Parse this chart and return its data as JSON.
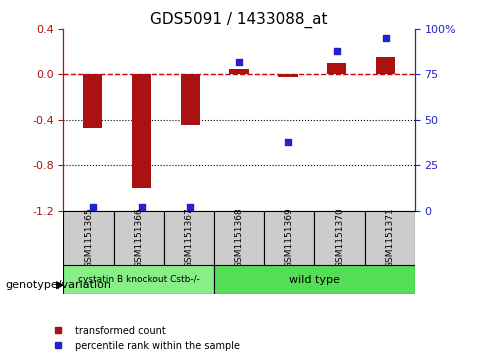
{
  "title": "GDS5091 / 1433088_at",
  "samples": [
    "GSM1151365",
    "GSM1151366",
    "GSM1151367",
    "GSM1151368",
    "GSM1151369",
    "GSM1151370",
    "GSM1151371"
  ],
  "transformed_count": [
    -0.47,
    -1.0,
    -0.45,
    0.05,
    -0.02,
    0.1,
    0.15
  ],
  "percentile_rank": [
    2,
    2,
    2,
    82,
    38,
    88,
    95
  ],
  "ylim_left": [
    -1.2,
    0.4
  ],
  "ylim_right": [
    0,
    100
  ],
  "bar_color": "#AA1111",
  "dot_color": "#2222CC",
  "zero_line_color": "#CC0000",
  "grid_color": "#000000",
  "group1_label": "cystatin B knockout Cstb-/-",
  "group2_label": "wild type",
  "group1_count": 3,
  "group2_count": 4,
  "group1_color": "#88EE88",
  "group2_color": "#55DD55",
  "genotype_label": "genotype/variation",
  "legend_red": "transformed count",
  "legend_blue": "percentile rank within the sample",
  "tick_left": [
    0.4,
    0.0,
    -0.4,
    -0.8,
    -1.2
  ],
  "tick_right": [
    100,
    75,
    50,
    25,
    0
  ],
  "bg_color": "#FFFFFF",
  "sample_bg": "#CCCCCC"
}
